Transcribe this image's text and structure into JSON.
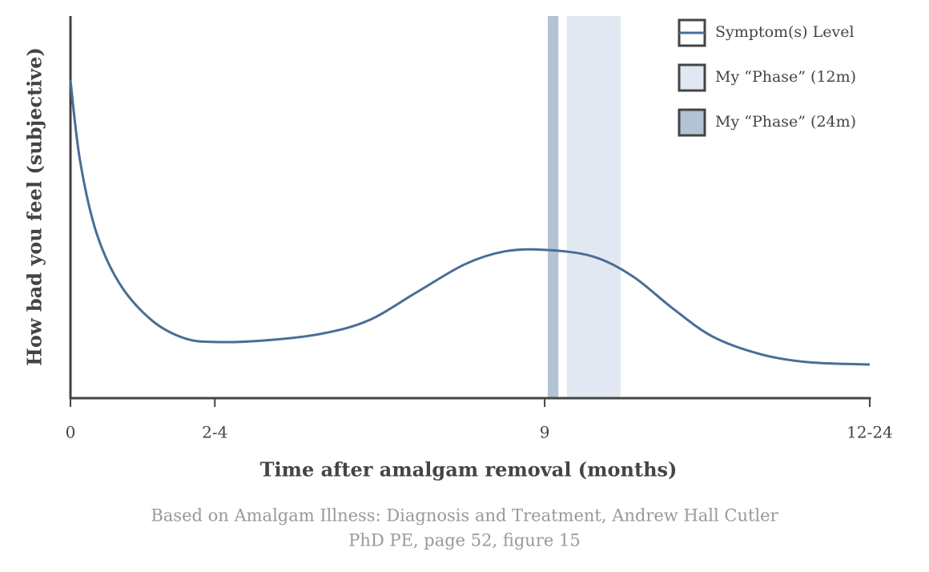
{
  "chart_data": {
    "type": "line",
    "xlabel": "Time after amalgam removal (months)",
    "ylabel": "How bad you feel (subjective)",
    "caption": [
      "Based on Amalgam Illness: Diagnosis and Treatment, Andrew Hall Cutler",
      "PhD PE, page 52, figure 15"
    ],
    "xlim": [
      0,
      15.17
    ],
    "xticks": [
      0,
      {
        "value": 2.74,
        "label": "2-4"
      },
      9,
      {
        "value": 15.17,
        "label": "12-24"
      }
    ],
    "ylim": [
      0,
      100
    ],
    "x": [
      0,
      0.18,
      0.49,
      0.94,
      1.55,
      2.16,
      2.74,
      3.68,
      4.74,
      5.65,
      6.57,
      7.48,
      8.24,
      9.0,
      9.91,
      10.67,
      11.43,
      12.19,
      13.1,
      14.01,
      15.17
    ],
    "series": [
      {
        "name": "Symptom(s) Level",
        "color": "#4a6d98",
        "values": [
          83.2,
          62.3,
          43.4,
          29.8,
          20.3,
          15.7,
          14.7,
          15.1,
          16.8,
          20.3,
          27.7,
          35.0,
          38.4,
          38.8,
          37.1,
          31.9,
          23.5,
          16.1,
          11.5,
          9.4,
          8.8
        ]
      }
    ],
    "spans": [
      {
        "name": "My “Phase” (12m)",
        "color": "#e1e8f1",
        "range": [
          9.42,
          10.44
        ]
      },
      {
        "name": "My “Phase” (24m)",
        "color": "#b3c2d4",
        "range": [
          9.06,
          9.26
        ]
      }
    ],
    "legend": "upper right"
  }
}
